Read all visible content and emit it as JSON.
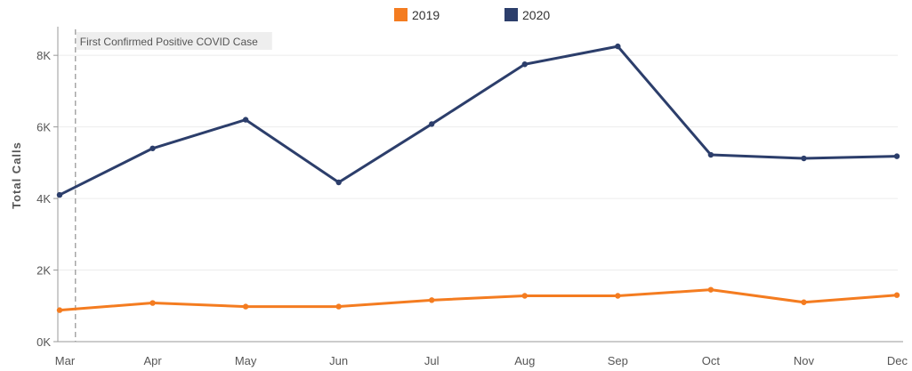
{
  "chart_data": {
    "type": "line",
    "categories": [
      "Mar",
      "Apr",
      "May",
      "Jun",
      "Jul",
      "Aug",
      "Sep",
      "Oct",
      "Nov",
      "Dec"
    ],
    "series": [
      {
        "name": "2019",
        "color": "#f47c20",
        "values": [
          880,
          1080,
          980,
          980,
          1160,
          1280,
          1280,
          1450,
          1100,
          1300
        ]
      },
      {
        "name": "2020",
        "color": "#2c3e6b",
        "values": [
          4100,
          5400,
          6200,
          4450,
          6080,
          7750,
          8250,
          5220,
          5120,
          5180
        ]
      }
    ],
    "ylabel": "Total Calls",
    "yticks": [
      0,
      2000,
      4000,
      6000,
      8000
    ],
    "ytick_labels": [
      "0K",
      "2K",
      "4K",
      "6K",
      "8K"
    ],
    "ylim": [
      0,
      8800
    ],
    "grid": true,
    "legend": "top-center",
    "annotation": {
      "label": "First Confirmed Positive COVID Case",
      "x_category_position": 0.17
    }
  }
}
